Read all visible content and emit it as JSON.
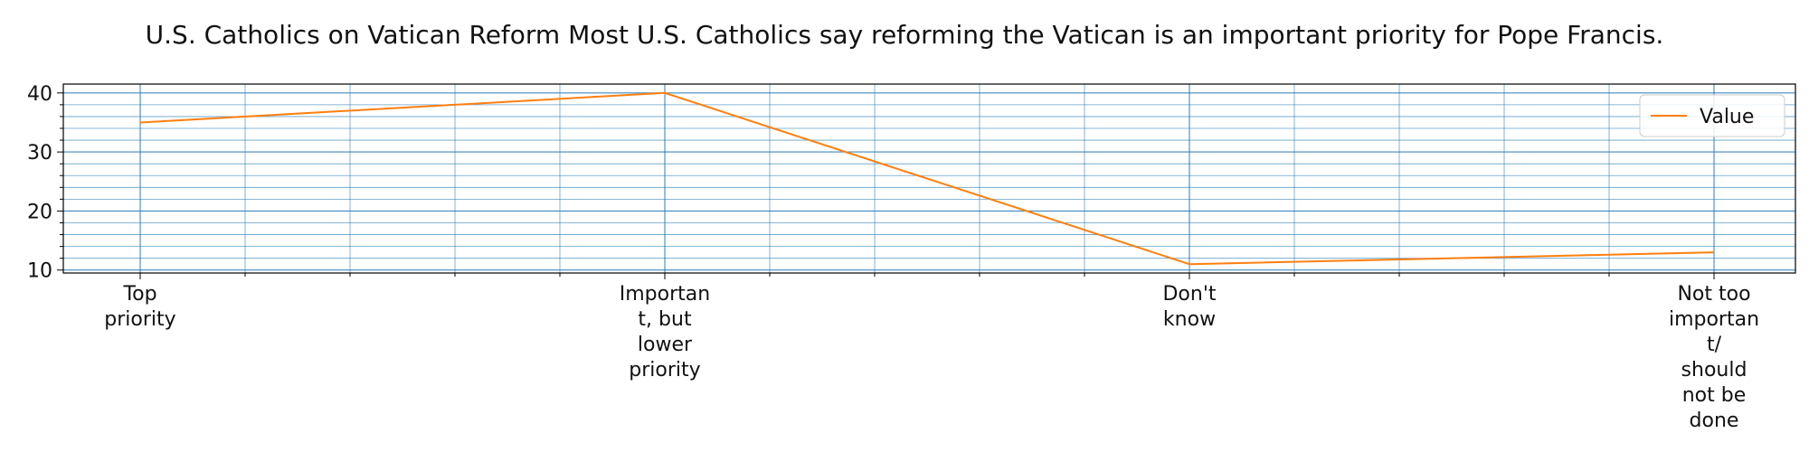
{
  "chart_data": {
    "type": "line",
    "title": "U.S. Catholics on Vatican Reform Most U.S. Catholics say reforming the Vatican is an important priority for Pope Francis.",
    "xlabel": "",
    "ylabel": "",
    "categories": [
      [
        "Top",
        "priority"
      ],
      [
        "Importan",
        "t, but",
        "lower",
        "priority"
      ],
      [
        "Don't",
        "know"
      ],
      [
        "Not too",
        "importan",
        "t/",
        "should",
        "not be",
        "done"
      ]
    ],
    "series": [
      {
        "name": "Value",
        "values": [
          35,
          40,
          11,
          13
        ]
      }
    ],
    "ylim": [
      9.5,
      41.5
    ],
    "yticks": [
      10,
      20,
      30,
      40
    ],
    "grid": true,
    "legend_position": "top-right",
    "colors": {
      "line": "#ff7f0e",
      "grid": "#1f77b4",
      "axis": "#000000",
      "text": "#111111"
    }
  }
}
